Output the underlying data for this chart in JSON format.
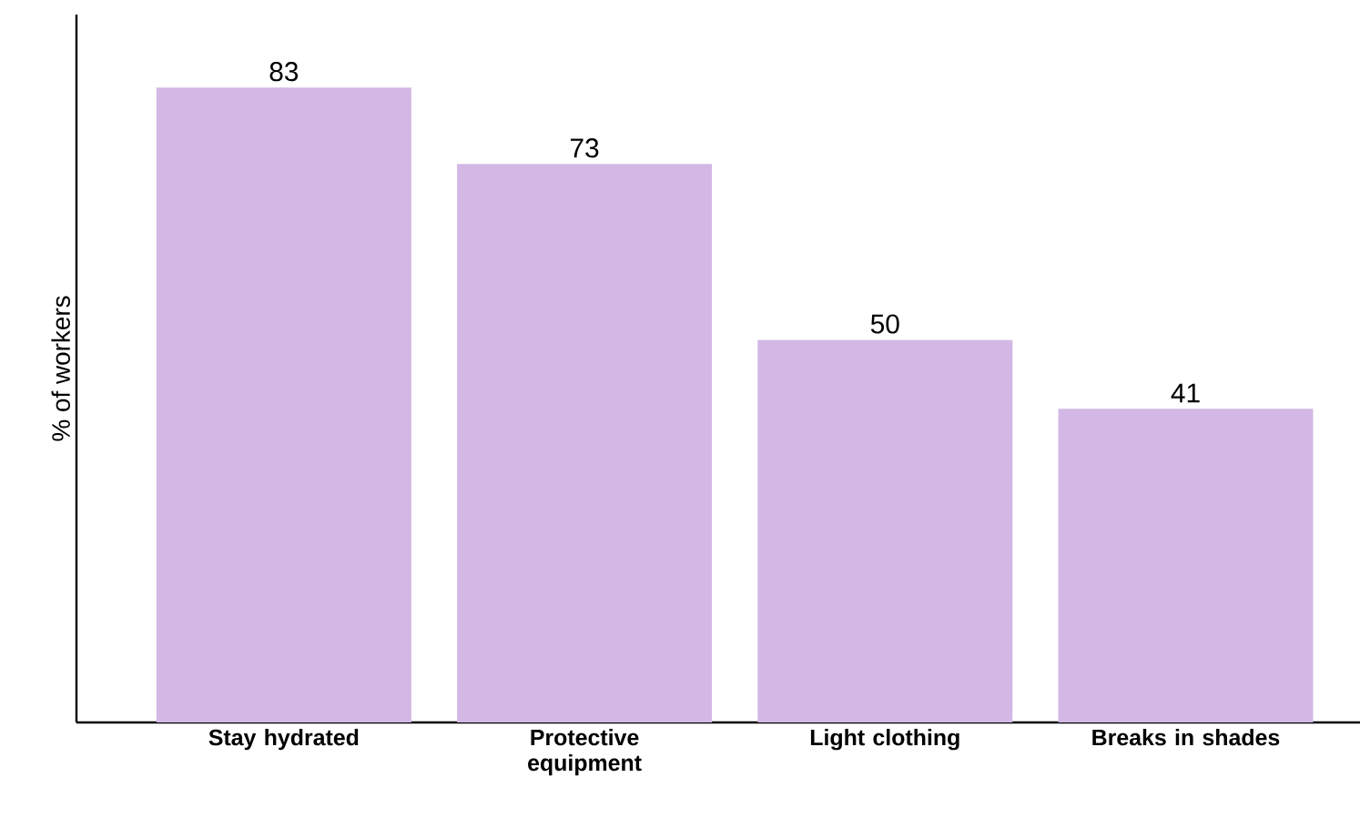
{
  "chart_data": {
    "type": "bar",
    "ylabel": "% of workers",
    "categories": [
      "Stay hydrated",
      "Protective equipment",
      "Light clothing",
      "Breaks in shades"
    ],
    "values": [
      83,
      73,
      50,
      41
    ],
    "color": "#d3b8e5",
    "data_labels": true,
    "relative": false
  }
}
